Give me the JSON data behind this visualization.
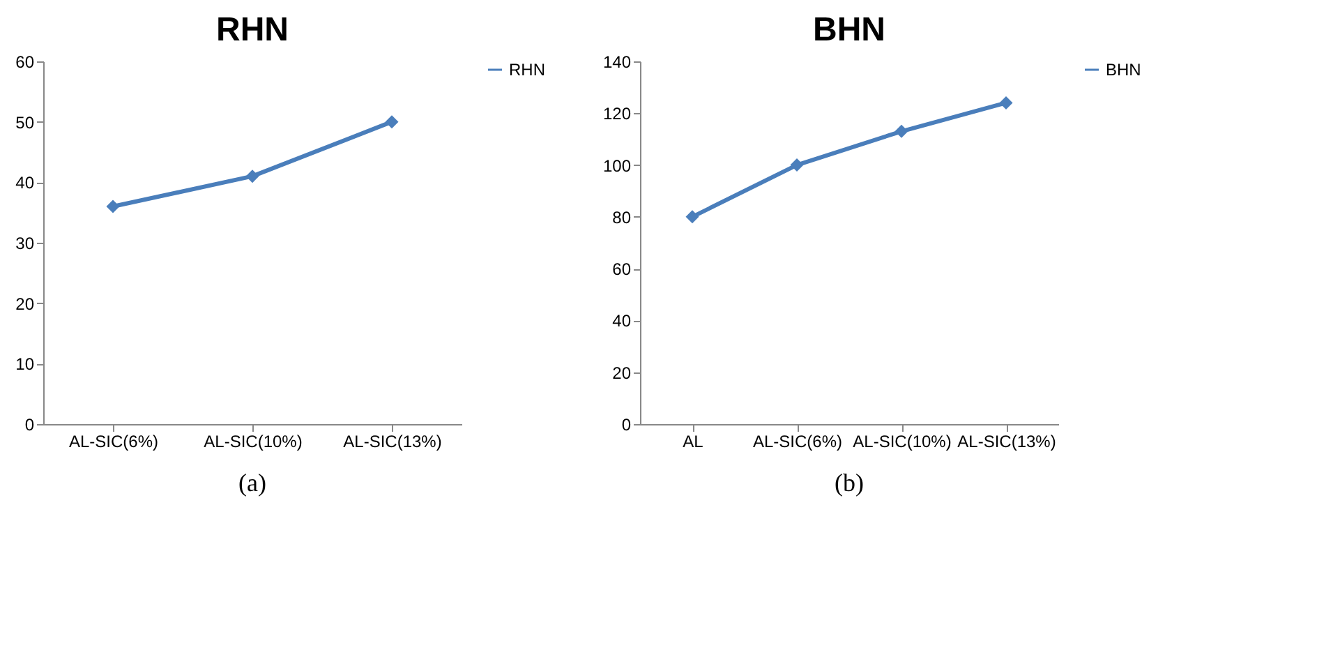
{
  "chart_data": [
    {
      "type": "line",
      "title": "RHN",
      "categories": [
        "AL-SIC(6%)",
        "AL-SIC(10%)",
        "AL-SIC(13%)"
      ],
      "series": [
        {
          "name": "RHN",
          "color": "#4a7ebb",
          "values": [
            36,
            41,
            50
          ]
        }
      ],
      "ylim": [
        0,
        60
      ],
      "yticks": [
        0,
        10,
        20,
        30,
        40,
        50,
        60
      ],
      "grid": false,
      "legend": "right",
      "marker": "diamond",
      "line_style": "solid",
      "annotations": [
        "(a)"
      ]
    },
    {
      "type": "line",
      "title": "BHN",
      "categories": [
        "AL",
        "AL-SIC(6%)",
        "AL-SIC(10%)",
        "AL-SIC(13%)"
      ],
      "series": [
        {
          "name": "BHN",
          "color": "#4a7ebb",
          "values": [
            80,
            100,
            113,
            124
          ]
        }
      ],
      "ylim": [
        0,
        140
      ],
      "yticks": [
        0,
        20,
        40,
        60,
        80,
        100,
        120,
        140
      ],
      "grid": false,
      "legend": "right",
      "marker": "diamond",
      "line_style": "solid",
      "annotations": [
        "(b)"
      ]
    }
  ]
}
